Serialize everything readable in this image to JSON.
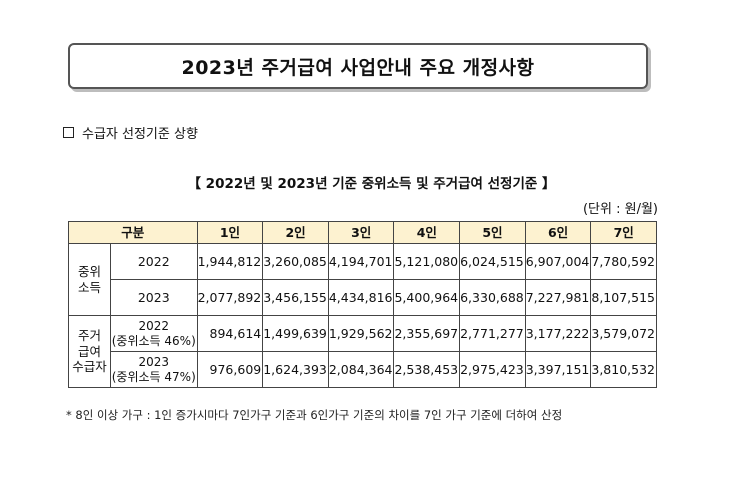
{
  "header": {
    "title": "2023년 주거급여 사업안내 주요 개정사항"
  },
  "section": {
    "label": "수급자 선정기준 상향"
  },
  "table": {
    "title": "【 2022년 및 2023년 기준 중위소득 및 주거급여 선정기준 】",
    "unit": "(단위 : 원/월)",
    "headers": [
      "구분",
      "1인",
      "2인",
      "3인",
      "4인",
      "5인",
      "6인",
      "7인"
    ],
    "groups": [
      {
        "label": [
          "중위",
          "소득"
        ],
        "rows": [
          {
            "year": "2022",
            "note": "",
            "values": [
              "1,944,812",
              "3,260,085",
              "4,194,701",
              "5,121,080",
              "6,024,515",
              "6,907,004",
              "7,780,592"
            ]
          },
          {
            "year": "2023",
            "note": "",
            "values": [
              "2,077,892",
              "3,456,155",
              "4,434,816",
              "5,400,964",
              "6,330,688",
              "7,227,981",
              "8,107,515"
            ]
          }
        ]
      },
      {
        "label": [
          "주거",
          "급여",
          "수급자"
        ],
        "rows": [
          {
            "year": "2022",
            "note": "(중위소득 46%)",
            "values": [
              "894,614",
              "1,499,639",
              "1,929,562",
              "2,355,697",
              "2,771,277",
              "3,177,222",
              "3,579,072"
            ]
          },
          {
            "year": "2023",
            "note": "(중위소득 47%)",
            "values": [
              "976,609",
              "1,624,393",
              "2,084,364",
              "2,538,453",
              "2,975,423",
              "3,397,151",
              "3,810,532"
            ]
          }
        ]
      }
    ],
    "footnote": "* 8인 이상 가구 : 1인 증가시마다 7인가구 기준과 6인가구 기준의 차이를 7인 가구 기준에 더하여 산정"
  }
}
